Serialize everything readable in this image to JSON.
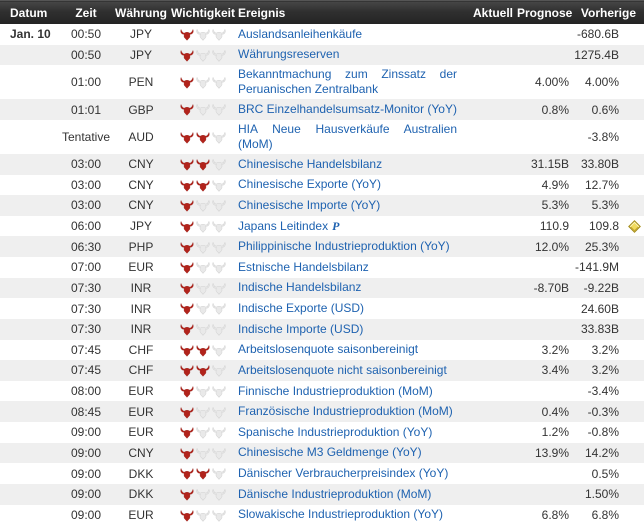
{
  "colors": {
    "header_bg": "#2f2f2f",
    "row_alt_bg": "#efefef",
    "event_link_blue": "#1e62b0",
    "bull_active_red": "#b2231b",
    "bull_inactive_gray": "#e9e9e9",
    "alert_diamond_gold": "#f0da5e"
  },
  "icons": {
    "importance": "bull-icon",
    "alert": "diamond-icon"
  },
  "table": {
    "headers": {
      "datum": "Datum",
      "zeit": "Zeit",
      "waehrung": "Währung",
      "wichtigkeit": "Wichtigkeit",
      "ereignis": "Ereignis",
      "aktuell": "Aktuell",
      "prognose": "Prognose",
      "vorherige": "Vorherige"
    },
    "rows": [
      {
        "date": "Jan. 10",
        "time": "00:50",
        "currency": "JPY",
        "importance": 1,
        "event": "Auslandsanleihenkäufe",
        "flag": "",
        "aktuell": "",
        "prognose": "",
        "vorherige": "-680.6B",
        "alert": false
      },
      {
        "date": "",
        "time": "00:50",
        "currency": "JPY",
        "importance": 1,
        "event": "Währungsreserven",
        "flag": "",
        "aktuell": "",
        "prognose": "",
        "vorherige": "1275.4B",
        "alert": false
      },
      {
        "date": "",
        "time": "01:00",
        "currency": "PEN",
        "importance": 1,
        "event": "Bekanntmachung zum Zinssatz der Peruanischen Zentralbank",
        "flag": "",
        "aktuell": "",
        "prognose": "4.00%",
        "vorherige": "4.00%",
        "alert": false
      },
      {
        "date": "",
        "time": "01:01",
        "currency": "GBP",
        "importance": 1,
        "event": "BRC Einzelhandelsumsatz-Monitor (YoY)",
        "flag": "",
        "aktuell": "",
        "prognose": "0.8%",
        "vorherige": "0.6%",
        "alert": false
      },
      {
        "date": "",
        "time": "Tentative",
        "currency": "AUD",
        "importance": 2,
        "event": "HIA Neue Hausverkäufe Australien (MoM)",
        "flag": "",
        "aktuell": "",
        "prognose": "",
        "vorherige": "-3.8%",
        "alert": false
      },
      {
        "date": "",
        "time": "03:00",
        "currency": "CNY",
        "importance": 2,
        "event": "Chinesische Handelsbilanz",
        "flag": "",
        "aktuell": "",
        "prognose": "31.15B",
        "vorherige": "33.80B",
        "alert": false
      },
      {
        "date": "",
        "time": "03:00",
        "currency": "CNY",
        "importance": 2,
        "event": "Chinesische Exporte (YoY)",
        "flag": "",
        "aktuell": "",
        "prognose": "4.9%",
        "vorherige": "12.7%",
        "alert": false
      },
      {
        "date": "",
        "time": "03:00",
        "currency": "CNY",
        "importance": 1,
        "event": "Chinesische Importe (YoY)",
        "flag": "",
        "aktuell": "",
        "prognose": "5.3%",
        "vorherige": "5.3%",
        "alert": false
      },
      {
        "date": "",
        "time": "06:00",
        "currency": "JPY",
        "importance": 1,
        "event": "Japans Leitindex",
        "flag": "P",
        "aktuell": "",
        "prognose": "110.9",
        "vorherige": "109.8",
        "alert": true
      },
      {
        "date": "",
        "time": "06:30",
        "currency": "PHP",
        "importance": 1,
        "event": "Philippinische Industrieproduktion (YoY)",
        "flag": "",
        "aktuell": "",
        "prognose": "12.0%",
        "vorherige": "25.3%",
        "alert": false
      },
      {
        "date": "",
        "time": "07:00",
        "currency": "EUR",
        "importance": 1,
        "event": "Estnische Handelsbilanz",
        "flag": "",
        "aktuell": "",
        "prognose": "",
        "vorherige": "-141.9M",
        "alert": false
      },
      {
        "date": "",
        "time": "07:30",
        "currency": "INR",
        "importance": 1,
        "event": "Indische Handelsbilanz",
        "flag": "",
        "aktuell": "",
        "prognose": "-8.70B",
        "vorherige": "-9.22B",
        "alert": false
      },
      {
        "date": "",
        "time": "07:30",
        "currency": "INR",
        "importance": 1,
        "event": "Indische Exporte (USD)",
        "flag": "",
        "aktuell": "",
        "prognose": "",
        "vorherige": "24.60B",
        "alert": false
      },
      {
        "date": "",
        "time": "07:30",
        "currency": "INR",
        "importance": 1,
        "event": "Indische Importe (USD)",
        "flag": "",
        "aktuell": "",
        "prognose": "",
        "vorherige": "33.83B",
        "alert": false
      },
      {
        "date": "",
        "time": "07:45",
        "currency": "CHF",
        "importance": 2,
        "event": "Arbeitslosenquote saisonbereinigt",
        "flag": "",
        "aktuell": "",
        "prognose": "3.2%",
        "vorherige": "3.2%",
        "alert": false
      },
      {
        "date": "",
        "time": "07:45",
        "currency": "CHF",
        "importance": 2,
        "event": "Arbeitslosenquote nicht saisonbereinigt",
        "flag": "",
        "aktuell": "",
        "prognose": "3.4%",
        "vorherige": "3.2%",
        "alert": false
      },
      {
        "date": "",
        "time": "08:00",
        "currency": "EUR",
        "importance": 1,
        "event": "Finnische Industrieproduktion (MoM)",
        "flag": "",
        "aktuell": "",
        "prognose": "",
        "vorherige": "-3.4%",
        "alert": false
      },
      {
        "date": "",
        "time": "08:45",
        "currency": "EUR",
        "importance": 1,
        "event": "Französische Industrieproduktion (MoM)",
        "flag": "",
        "aktuell": "",
        "prognose": "0.4%",
        "vorherige": "-0.3%",
        "alert": false
      },
      {
        "date": "",
        "time": "09:00",
        "currency": "EUR",
        "importance": 1,
        "event": "Spanische Industrieproduktion (YoY)",
        "flag": "",
        "aktuell": "",
        "prognose": "1.2%",
        "vorherige": "-0.8%",
        "alert": false
      },
      {
        "date": "",
        "time": "09:00",
        "currency": "CNY",
        "importance": 1,
        "event": "Chinesische M3 Geldmenge (YoY)",
        "flag": "",
        "aktuell": "",
        "prognose": "13.9%",
        "vorherige": "14.2%",
        "alert": false
      },
      {
        "date": "",
        "time": "09:00",
        "currency": "DKK",
        "importance": 2,
        "event": "Dänischer Verbraucherpreisindex (YoY)",
        "flag": "",
        "aktuell": "",
        "prognose": "",
        "vorherige": "0.5%",
        "alert": false
      },
      {
        "date": "",
        "time": "09:00",
        "currency": "DKK",
        "importance": 1,
        "event": "Dänische Industrieproduktion (MoM)",
        "flag": "",
        "aktuell": "",
        "prognose": "",
        "vorherige": "1.50%",
        "alert": false
      },
      {
        "date": "",
        "time": "09:00",
        "currency": "EUR",
        "importance": 1,
        "event": "Slowakische Industrieproduktion (YoY)",
        "flag": "",
        "aktuell": "",
        "prognose": "6.8%",
        "vorherige": "6.8%",
        "alert": false
      }
    ]
  }
}
